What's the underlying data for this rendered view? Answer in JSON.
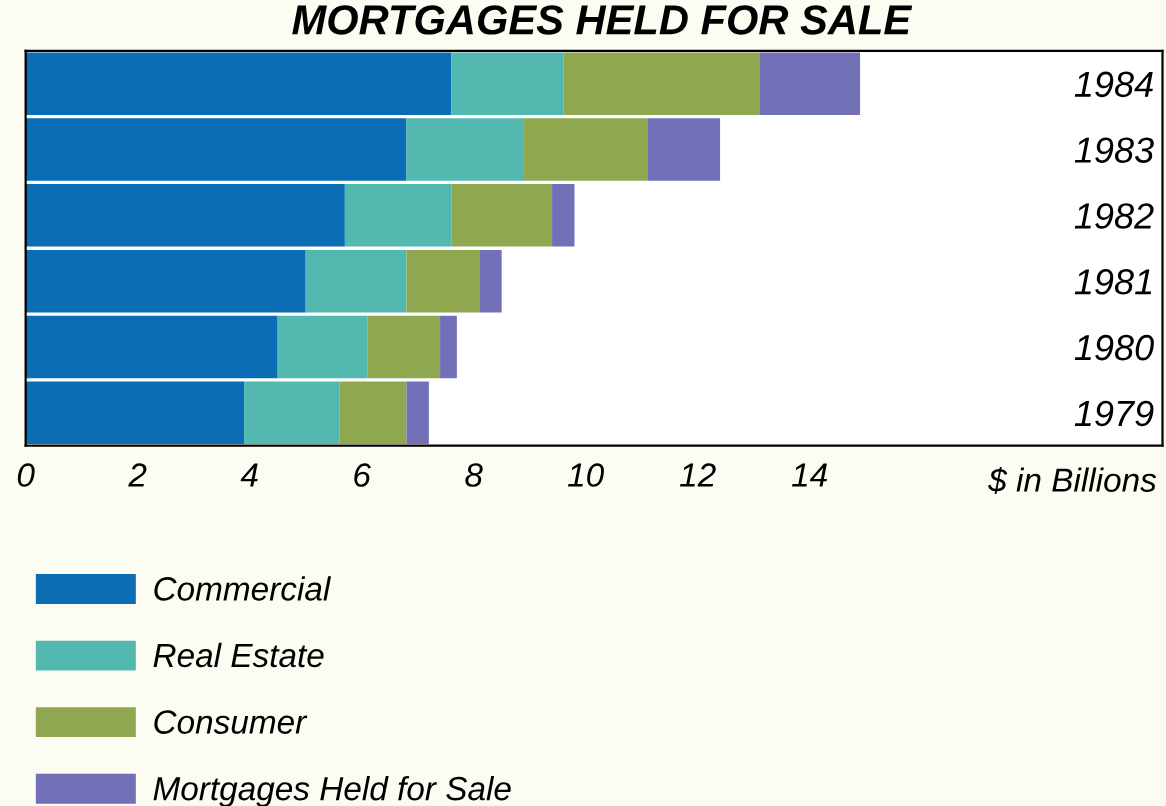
{
  "chart_data": {
    "type": "bar",
    "orientation": "horizontal",
    "stacked": true,
    "title": "MORTGAGES HELD FOR SALE",
    "xlabel": "$ in Billions",
    "categories": [
      "1984",
      "1983",
      "1982",
      "1981",
      "1980",
      "1979"
    ],
    "series": [
      {
        "name": "Commercial",
        "color": "#0b6db3",
        "values": [
          7.6,
          6.8,
          5.7,
          5.0,
          4.5,
          3.9
        ]
      },
      {
        "name": "Real Estate",
        "color": "#52b8b0",
        "values": [
          2.0,
          2.1,
          1.9,
          1.8,
          1.6,
          1.7
        ]
      },
      {
        "name": "Consumer",
        "color": "#8fa74f",
        "values": [
          3.5,
          2.2,
          1.8,
          1.3,
          1.3,
          1.2
        ]
      },
      {
        "name": "Mortgages Held for Sale",
        "color": "#7270b6",
        "values": [
          1.8,
          1.3,
          0.4,
          0.4,
          0.3,
          0.4
        ]
      }
    ],
    "xlim": [
      0,
      20.3
    ],
    "xticks": [
      0,
      2,
      4,
      6,
      8,
      10,
      12,
      14
    ],
    "grid": false,
    "legend": "bottom"
  }
}
